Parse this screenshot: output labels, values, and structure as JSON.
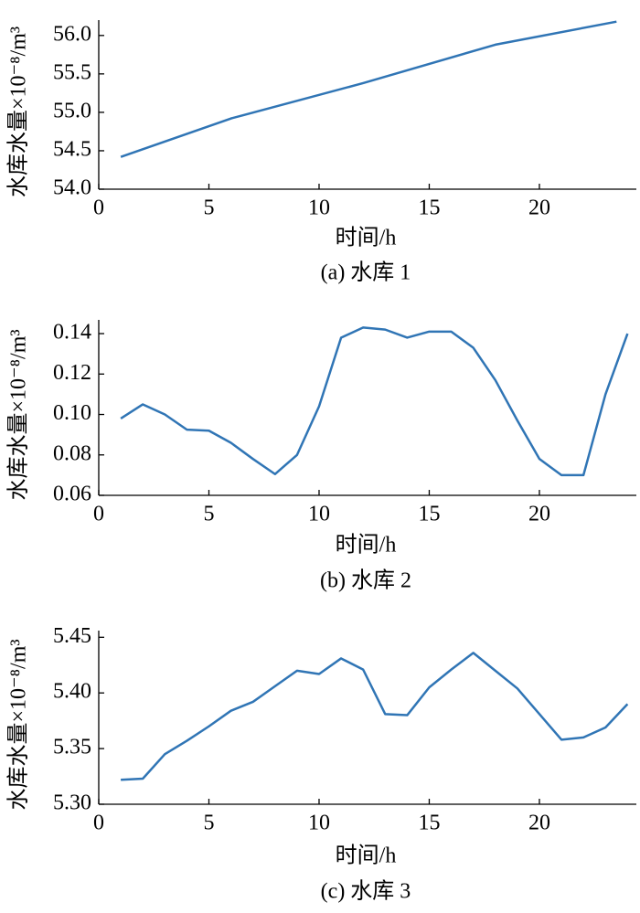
{
  "chart_data": [
    {
      "type": "line",
      "caption": "(a)  水库 1",
      "xlabel": "时间/h",
      "ylabel": "水库水量×10⁻⁸/m³",
      "color": "#3075b5",
      "x": [
        1,
        6,
        12,
        18,
        23.5
      ],
      "values": [
        54.42,
        54.92,
        55.38,
        55.88,
        56.18
      ],
      "xlim": [
        0,
        24.4
      ],
      "xticks": [
        0,
        5,
        10,
        15,
        20
      ],
      "ylim": [
        54,
        56.2
      ],
      "yticks": [
        {
          "value": 54,
          "label": "54.0"
        },
        54.5,
        {
          "value": 55,
          "label": "55.0"
        },
        55.5,
        {
          "value": 56,
          "label": "56.0"
        }
      ]
    },
    {
      "type": "line",
      "caption": "(b)  水库 2",
      "xlabel": "时间/h",
      "ylabel": "水库水量×10⁻⁸/m³",
      "color": "#3075b5",
      "x": [
        1,
        2,
        3,
        4,
        5,
        6,
        7,
        8,
        9,
        10,
        11,
        12,
        13,
        14,
        15,
        16,
        17,
        18,
        19,
        20,
        21,
        22,
        23,
        24
      ],
      "values": [
        0.098,
        0.105,
        0.1,
        0.0925,
        0.092,
        0.086,
        0.078,
        0.0705,
        0.08,
        0.104,
        0.138,
        0.143,
        0.142,
        0.138,
        0.141,
        0.141,
        0.133,
        0.117,
        0.097,
        0.078,
        0.07,
        0.07,
        0.11,
        0.14
      ],
      "xlim": [
        0,
        24.4
      ],
      "xticks": [
        0,
        5,
        10,
        15,
        20
      ],
      "ylim": [
        0.06,
        0.1468
      ],
      "yticks": [
        0.06,
        0.08,
        {
          "value": 0.1,
          "label": "0.10"
        },
        0.12,
        0.14
      ]
    },
    {
      "type": "line",
      "caption": "(c)  水库 3",
      "xlabel": "时间/h",
      "ylabel": "水库水量×10⁻⁸/m³",
      "color": "#3075b5",
      "x": [
        1,
        2,
        3,
        4,
        5,
        6,
        7,
        8,
        9,
        10,
        11,
        12,
        13,
        14,
        15,
        16,
        17,
        18,
        19,
        20,
        21,
        22,
        23,
        24
      ],
      "values": [
        5.322,
        5.323,
        5.345,
        5.357,
        5.37,
        5.384,
        5.392,
        5.406,
        5.42,
        5.417,
        5.431,
        5.421,
        5.381,
        5.38,
        5.405,
        5.421,
        5.436,
        5.42,
        5.404,
        5.381,
        5.358,
        5.36,
        5.369,
        5.39
      ],
      "xlim": [
        0,
        24.4
      ],
      "xticks": [
        0,
        5,
        10,
        15,
        20
      ],
      "ylim": [
        5.3,
        5.456
      ],
      "yticks": [
        {
          "value": 5.3,
          "label": "5.30"
        },
        5.35,
        {
          "value": 5.4,
          "label": "5.40"
        },
        5.45
      ]
    }
  ]
}
